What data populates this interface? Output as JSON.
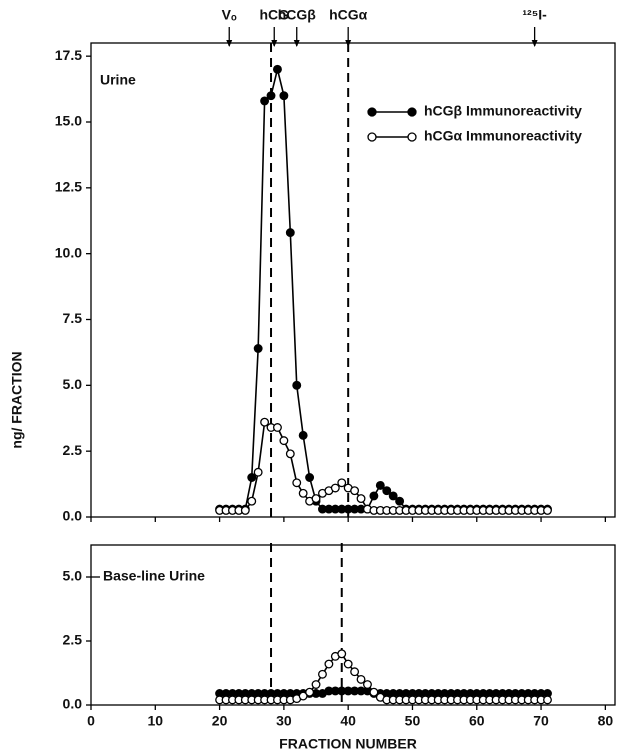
{
  "chart_data": [
    {
      "type": "line",
      "panel_label": "Urine",
      "ylabel": "ng/ FRACTION",
      "xlim": [
        0,
        81.5
      ],
      "ylim": [
        0,
        18
      ],
      "yticks": [
        {
          "value": 0,
          "label": "0.0"
        },
        2.5,
        {
          "value": 5,
          "label": "5.0"
        },
        7.5,
        {
          "value": 10,
          "label": "10.0"
        },
        12.5,
        {
          "value": 15,
          "label": "15.0"
        },
        17.5
      ],
      "legend": "upper right",
      "vlines": [
        28,
        40
      ],
      "annotations": [
        {
          "label": "Vₒ",
          "x": 21.5
        },
        {
          "label": "hCG",
          "x": 28.5
        },
        {
          "label": "hCGβ",
          "x": 32
        },
        {
          "label": "hCGα",
          "x": 40
        },
        {
          "label": "¹²⁵I-",
          "x": 69
        }
      ],
      "x": [
        20,
        21,
        22,
        23,
        24,
        25,
        26,
        27,
        28,
        29,
        30,
        31,
        32,
        33,
        34,
        35,
        36,
        37,
        38,
        39,
        40,
        41,
        42,
        43,
        44,
        45,
        46,
        47,
        48,
        49,
        50,
        51,
        52,
        53,
        54,
        55,
        56,
        57,
        58,
        59,
        60,
        61,
        62,
        63,
        64,
        65,
        66,
        67,
        68,
        69,
        70,
        71
      ],
      "series": [
        {
          "name": "hCGβ Immunoreactivity",
          "color": "#000000",
          "values": [
            0.3,
            0.3,
            0.3,
            0.3,
            0.3,
            1.5,
            6.4,
            15.8,
            16.0,
            17.0,
            16.0,
            10.8,
            5.0,
            3.1,
            1.5,
            0.6,
            0.3,
            0.3,
            0.3,
            0.3,
            0.3,
            0.3,
            0.3,
            0.3,
            0.8,
            1.2,
            1.0,
            0.8,
            0.6,
            0.3,
            0.3,
            0.3,
            0.3,
            0.3,
            0.3,
            0.3,
            0.3,
            0.3,
            0.3,
            0.3,
            0.3,
            0.3,
            0.3,
            0.3,
            0.3,
            0.3,
            0.3,
            0.3,
            0.3,
            0.3,
            0.3,
            0.3
          ]
        },
        {
          "name": "hCGα Immunoreactivity",
          "color": "#ffffff",
          "values": [
            0.25,
            0.25,
            0.25,
            0.25,
            0.25,
            0.6,
            1.7,
            3.6,
            3.4,
            3.4,
            2.9,
            2.4,
            1.3,
            0.9,
            0.6,
            0.7,
            0.9,
            1.0,
            1.1,
            1.3,
            1.1,
            1.0,
            0.7,
            0.3,
            0.25,
            0.25,
            0.25,
            0.25,
            0.25,
            0.25,
            0.25,
            0.25,
            0.25,
            0.25,
            0.25,
            0.25,
            0.25,
            0.25,
            0.25,
            0.25,
            0.25,
            0.25,
            0.25,
            0.25,
            0.25,
            0.25,
            0.25,
            0.25,
            0.25,
            0.25,
            0.25,
            0.25
          ]
        }
      ]
    },
    {
      "type": "line",
      "panel_label": "Base-line Urine",
      "xlabel": "FRACTION NUMBER",
      "xlim": [
        0,
        81.5
      ],
      "ylim": [
        0,
        6.25
      ],
      "xticks": [
        0,
        10,
        20,
        30,
        40,
        50,
        60,
        70,
        80
      ],
      "yticks": [
        {
          "value": 0,
          "label": "0.0"
        },
        2.5,
        {
          "value": 5,
          "label": "5.0"
        }
      ],
      "vlines": [
        28,
        39
      ],
      "x": [
        20,
        21,
        22,
        23,
        24,
        25,
        26,
        27,
        28,
        29,
        30,
        31,
        32,
        33,
        34,
        35,
        36,
        37,
        38,
        39,
        40,
        41,
        42,
        43,
        44,
        45,
        46,
        47,
        48,
        49,
        50,
        51,
        52,
        53,
        54,
        55,
        56,
        57,
        58,
        59,
        60,
        61,
        62,
        63,
        64,
        65,
        66,
        67,
        68,
        69,
        70,
        71
      ],
      "series": [
        {
          "color": "#000000",
          "values": [
            0.45,
            0.45,
            0.45,
            0.45,
            0.45,
            0.45,
            0.45,
            0.45,
            0.45,
            0.45,
            0.45,
            0.45,
            0.45,
            0.45,
            0.45,
            0.45,
            0.45,
            0.55,
            0.55,
            0.55,
            0.55,
            0.55,
            0.55,
            0.55,
            0.45,
            0.45,
            0.45,
            0.45,
            0.45,
            0.45,
            0.45,
            0.45,
            0.45,
            0.45,
            0.45,
            0.45,
            0.45,
            0.45,
            0.45,
            0.45,
            0.45,
            0.45,
            0.45,
            0.45,
            0.45,
            0.45,
            0.45,
            0.45,
            0.45,
            0.45,
            0.45,
            0.45
          ]
        },
        {
          "color": "#ffffff",
          "values": [
            0.2,
            0.2,
            0.2,
            0.2,
            0.2,
            0.2,
            0.2,
            0.2,
            0.2,
            0.2,
            0.2,
            0.2,
            0.25,
            0.35,
            0.5,
            0.8,
            1.2,
            1.6,
            1.9,
            2.0,
            1.6,
            1.3,
            1.0,
            0.8,
            0.5,
            0.3,
            0.2,
            0.2,
            0.2,
            0.2,
            0.2,
            0.2,
            0.2,
            0.2,
            0.2,
            0.2,
            0.2,
            0.2,
            0.2,
            0.2,
            0.2,
            0.2,
            0.2,
            0.2,
            0.2,
            0.2,
            0.2,
            0.2,
            0.2,
            0.2,
            0.2,
            0.2
          ]
        }
      ]
    }
  ]
}
